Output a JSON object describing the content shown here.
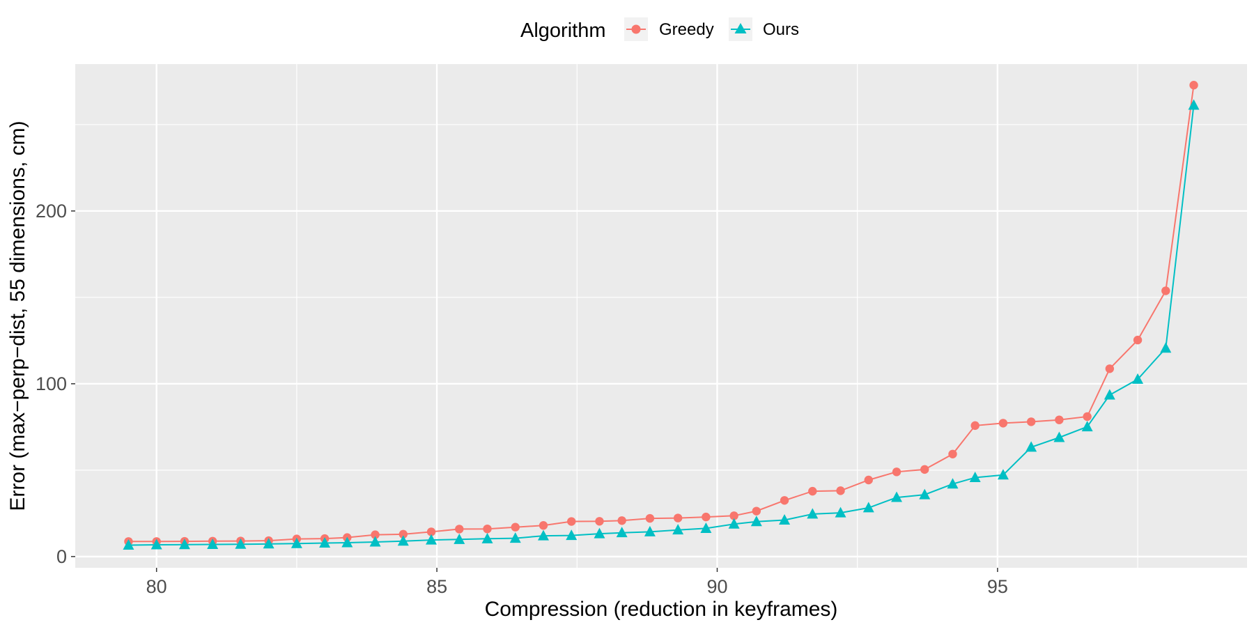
{
  "chart_data": {
    "type": "line",
    "xlabel": "Compression (reduction in keyframes)",
    "ylabel": "Error (max−perp−dist, 55 dimensions, cm)",
    "xlim": [
      78.55,
      99.45
    ],
    "ylim": [
      -6.5,
      285
    ],
    "x_ticks": [
      80,
      85,
      90,
      95
    ],
    "x_tick_labels": [
      "80",
      "85",
      "90",
      "95"
    ],
    "y_ticks": [
      0,
      100,
      200
    ],
    "y_tick_labels": [
      "0",
      "100",
      "200"
    ],
    "grid": true,
    "legend": {
      "title": "Algorithm",
      "position": "top"
    },
    "x": [
      79.5,
      80.0,
      80.5,
      81.0,
      81.5,
      82.0,
      82.5,
      83.0,
      83.4,
      83.9,
      84.4,
      84.9,
      85.4,
      85.9,
      86.4,
      86.9,
      87.4,
      87.9,
      88.3,
      88.8,
      89.3,
      89.8,
      90.3,
      90.7,
      91.2,
      91.7,
      92.2,
      92.7,
      93.2,
      93.7,
      94.2,
      94.6,
      95.1,
      95.6,
      96.1,
      96.6,
      97.0,
      97.5,
      98.0,
      98.5
    ],
    "series": [
      {
        "name": "Greedy",
        "color": "#F8766D",
        "marker": "circle",
        "values": [
          8.7,
          8.7,
          8.8,
          8.9,
          9.0,
          9.2,
          10.2,
          10.4,
          11.0,
          12.6,
          12.9,
          14.3,
          15.9,
          16.0,
          17.0,
          18.0,
          20.3,
          20.4,
          20.8,
          22.1,
          22.3,
          22.9,
          23.6,
          26.3,
          32.5,
          37.8,
          38.1,
          44.3,
          49.0,
          50.4,
          59.3,
          75.8,
          77.2,
          78.0,
          79.1,
          81.0,
          108.7,
          125.3,
          153.8,
          272.8
        ]
      },
      {
        "name": "Ours",
        "color": "#00BFC4",
        "marker": "triangle",
        "values": [
          6.6,
          6.8,
          6.9,
          7.0,
          7.1,
          7.3,
          7.5,
          7.8,
          8.0,
          8.4,
          8.9,
          9.6,
          9.9,
          10.3,
          10.6,
          12.0,
          12.2,
          13.2,
          13.8,
          14.3,
          15.4,
          16.3,
          18.8,
          20.2,
          21.1,
          24.6,
          25.3,
          28.2,
          34.2,
          35.8,
          42.0,
          45.7,
          47.2,
          63.3,
          68.9,
          75.1,
          93.5,
          102.6,
          120.6,
          261.2
        ]
      }
    ]
  }
}
